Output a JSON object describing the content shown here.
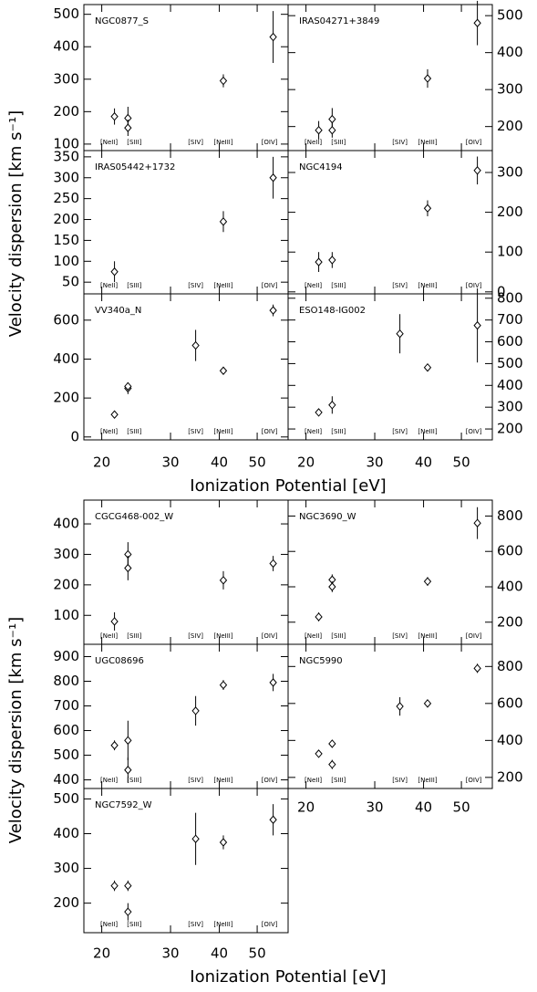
{
  "figures": [
    {
      "xlabel": "Ionization Potential [eV]",
      "ylabel": "Velocity dispersion [km s⁻¹]"
    },
    {
      "xlabel": "Ionization Potential [eV]",
      "ylabel": "Velocity dispersion [km s⁻¹]"
    }
  ],
  "ions": {
    "labels": [
      "[NeII]",
      "[SIII]",
      "[SIV]",
      "[NeIII]",
      "[OIV]"
    ],
    "x": [
      21.56,
      23.34,
      34.79,
      40.96,
      54.94
    ]
  },
  "chart_data": [
    {
      "type": "scatter",
      "title": "NGC0877_S",
      "x": [
        21.56,
        23.34,
        23.34,
        40.96,
        54.94
      ],
      "values": [
        185,
        180,
        150,
        295,
        430
      ],
      "errors": [
        25,
        35,
        25,
        20,
        80
      ],
      "xlim": [
        18,
        60
      ],
      "xticks": [
        20,
        30,
        40,
        50
      ],
      "ylim": [
        80,
        530
      ],
      "yticks": [
        100,
        200,
        300,
        400,
        500
      ]
    },
    {
      "type": "scatter",
      "title": "IRAS04271+3849",
      "x": [
        21.56,
        23.34,
        23.34,
        40.96,
        54.94
      ],
      "values": [
        190,
        220,
        190,
        330,
        480
      ],
      "errors": [
        25,
        30,
        20,
        25,
        60
      ],
      "xlim": [
        18,
        60
      ],
      "xticks": [
        20,
        30,
        40,
        50
      ],
      "ylim": [
        135,
        530
      ],
      "yticks": [
        200,
        300,
        400,
        500
      ]
    },
    {
      "type": "scatter",
      "title": "IRAS05442+1732",
      "x": [
        21.56,
        40.96,
        54.94
      ],
      "values": [
        75,
        195,
        300
      ],
      "errors": [
        25,
        25,
        50
      ],
      "xlim": [
        18,
        60
      ],
      "xticks": [
        20,
        30,
        40,
        50
      ],
      "ylim": [
        22,
        365
      ],
      "yticks": [
        50,
        100,
        150,
        200,
        250,
        300,
        350
      ]
    },
    {
      "type": "scatter",
      "title": "NGC4194",
      "x": [
        21.56,
        23.34,
        40.96,
        54.94
      ],
      "values": [
        75,
        80,
        210,
        305
      ],
      "errors": [
        25,
        20,
        20,
        35
      ],
      "xlim": [
        18,
        60
      ],
      "xticks": [
        20,
        30,
        40,
        50
      ],
      "ylim": [
        -5,
        355
      ],
      "yticks": [
        0,
        100,
        200,
        300
      ]
    },
    {
      "type": "scatter",
      "title": "VV340a_N",
      "x": [
        21.56,
        23.34,
        23.34,
        34.79,
        40.96,
        54.94
      ],
      "values": [
        115,
        250,
        260,
        470,
        340,
        650
      ],
      "errors": [
        15,
        30,
        20,
        80,
        20,
        30
      ],
      "xlim": [
        18,
        60
      ],
      "xticks": [
        20,
        30,
        40,
        50
      ],
      "ylim": [
        -15,
        735
      ],
      "yticks": [
        0,
        200,
        400,
        600
      ]
    },
    {
      "type": "scatter",
      "title": "ESO148-IG002",
      "x": [
        21.56,
        23.34,
        34.79,
        40.96,
        54.94
      ],
      "values": [
        276,
        310,
        637,
        482,
        675
      ],
      "errors": [
        15,
        40,
        90,
        15,
        170
      ],
      "xlim": [
        18,
        60
      ],
      "xticks": [
        20,
        30,
        40,
        50
      ],
      "ylim": [
        150,
        820
      ],
      "yticks": [
        200,
        300,
        400,
        500,
        600,
        700,
        800
      ]
    },
    {
      "type": "scatter",
      "title": "CGCG468-002_W",
      "x": [
        21.56,
        23.34,
        23.34,
        40.96,
        54.94
      ],
      "values": [
        80,
        300,
        255,
        215,
        270
      ],
      "errors": [
        30,
        40,
        40,
        30,
        25
      ],
      "xlim": [
        18,
        60
      ],
      "xticks": [
        20,
        30,
        40,
        50
      ],
      "ylim": [
        5,
        478
      ],
      "yticks": [
        100,
        200,
        300,
        400
      ]
    },
    {
      "type": "scatter",
      "title": "NGC3690_W",
      "x": [
        21.56,
        23.34,
        23.34,
        40.96,
        54.94
      ],
      "values": [
        230,
        440,
        400,
        430,
        760
      ],
      "errors": [
        25,
        30,
        30,
        25,
        90
      ],
      "xlim": [
        18,
        60
      ],
      "xticks": [
        20,
        30,
        40,
        50
      ],
      "ylim": [
        75,
        890
      ],
      "yticks": [
        200,
        400,
        600,
        800
      ]
    },
    {
      "type": "scatter",
      "title": "UGC08696",
      "x": [
        21.56,
        23.34,
        23.34,
        34.79,
        40.96,
        54.94
      ],
      "values": [
        540,
        560,
        440,
        680,
        785,
        795
      ],
      "errors": [
        20,
        80,
        50,
        60,
        20,
        35
      ],
      "xlim": [
        18,
        60
      ],
      "xticks": [
        20,
        30,
        40,
        50
      ],
      "ylim": [
        365,
        950
      ],
      "yticks": [
        400,
        500,
        600,
        700,
        800,
        900
      ]
    },
    {
      "type": "scatter",
      "title": "NGC5990",
      "x": [
        21.56,
        23.34,
        23.34,
        34.79,
        40.96,
        54.94
      ],
      "values": [
        328,
        382,
        270,
        584,
        600,
        790
      ],
      "errors": [
        15,
        20,
        25,
        50,
        15,
        25
      ],
      "xlim": [
        18,
        60
      ],
      "xticks": [
        20,
        30,
        40,
        50
      ],
      "ylim": [
        140,
        920
      ],
      "yticks": [
        200,
        400,
        600,
        800
      ]
    },
    {
      "type": "scatter",
      "title": "NGC7592_W",
      "x": [
        21.56,
        23.34,
        23.34,
        34.79,
        40.96,
        54.94
      ],
      "values": [
        250,
        250,
        175,
        385,
        375,
        440
      ],
      "errors": [
        15,
        15,
        25,
        75,
        20,
        45
      ],
      "xlim": [
        18,
        60
      ],
      "xticks": [
        20,
        30,
        40,
        50
      ],
      "ylim": [
        115,
        530
      ],
      "yticks": [
        200,
        300,
        400,
        500
      ]
    }
  ]
}
